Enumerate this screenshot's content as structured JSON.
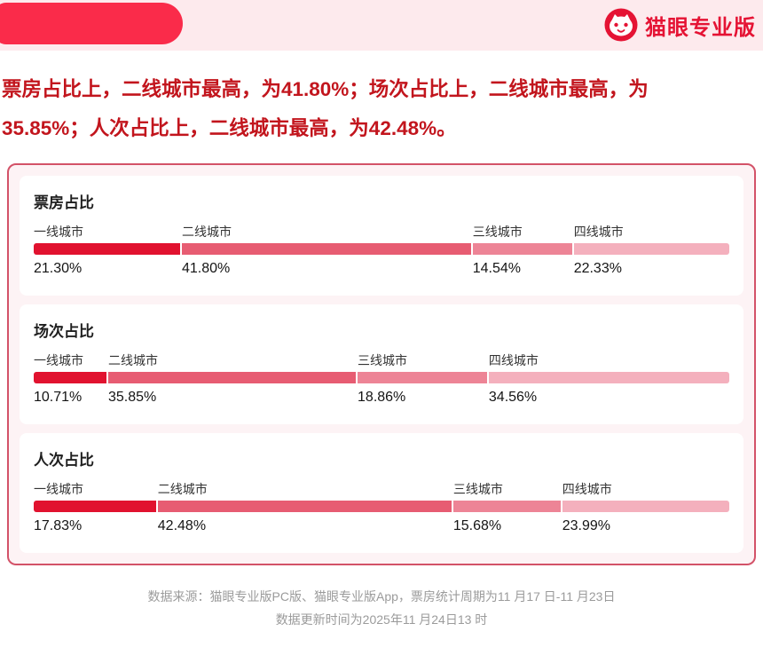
{
  "header": {
    "brand": {
      "logo_text": "猫眼专业版"
    }
  },
  "headline": {
    "text": "票房占比上，二线城市最高，为41.80%；场次占比上，二线城市最高，为35.85%；人次占比上，二线城市最高，为42.48%。",
    "lines": [
      "票房占比上，二线城市最高，为41.80%；场次占比上，二线城市最高，为",
      "35.85%；人次占比上，二线城市最高，为42.48%。"
    ]
  },
  "chart_data": [
    {
      "type": "bar",
      "subtype": "horizontal-stacked-100",
      "title": "票房占比",
      "categories": [
        "一线城市",
        "二线城市",
        "三线城市",
        "四线城市"
      ],
      "values": [
        21.3,
        41.8,
        14.54,
        22.33
      ],
      "value_labels": [
        "21.30%",
        "41.80%",
        "14.54%",
        "22.33%"
      ],
      "xlim": [
        0,
        100
      ],
      "legend_position": "above-segments",
      "grid": false
    },
    {
      "type": "bar",
      "subtype": "horizontal-stacked-100",
      "title": "场次占比",
      "categories": [
        "一线城市",
        "二线城市",
        "三线城市",
        "四线城市"
      ],
      "values": [
        10.71,
        35.85,
        18.86,
        34.56
      ],
      "value_labels": [
        "10.71%",
        "35.85%",
        "18.86%",
        "34.56%"
      ],
      "xlim": [
        0,
        100
      ],
      "legend_position": "above-segments",
      "grid": false
    },
    {
      "type": "bar",
      "subtype": "horizontal-stacked-100",
      "title": "人次占比",
      "categories": [
        "一线城市",
        "二线城市",
        "三线城市",
        "四线城市"
      ],
      "values": [
        17.83,
        42.48,
        15.68,
        23.99
      ],
      "value_labels": [
        "17.83%",
        "42.48%",
        "15.68%",
        "23.99%"
      ],
      "xlim": [
        0,
        100
      ],
      "legend_position": "above-segments",
      "grid": false
    }
  ],
  "colors": {
    "segment_colors": [
      "#e1122f",
      "#e75c72",
      "#ed8496",
      "#f4b0bd"
    ],
    "headline_red": "#c2151d",
    "brand_red": "#e51334",
    "pill_red": "#fa2b4a",
    "panel_border": "#d35268",
    "header_band_bg": "#fdeaed"
  },
  "footer": {
    "line1": "数据来源：猫眼专业版PC版、猫眼专业版App，票房统计周期为11 月17 日-11 月23日",
    "line2": "数据更新时间为2025年11 月24日13 时"
  }
}
